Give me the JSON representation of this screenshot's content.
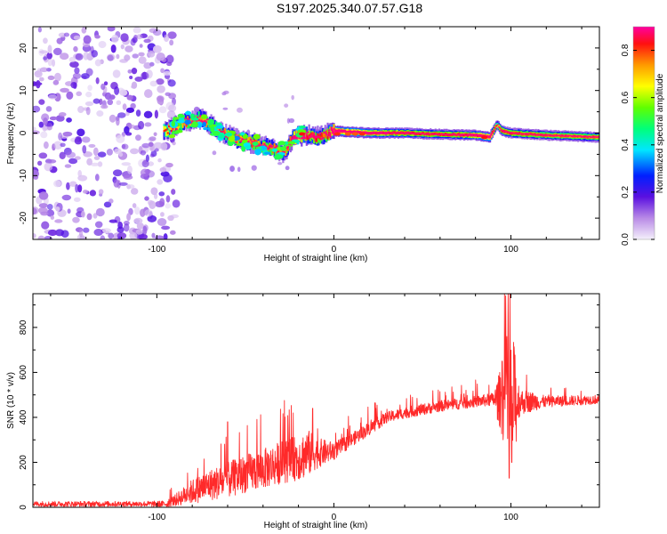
{
  "figure_title": "S197.2025.340.07.57.G18",
  "colors": {
    "signal": "#ff2a2a",
    "background": "#ffffff",
    "axis": "#000000"
  },
  "chart_data": [
    {
      "type": "heatmap",
      "title": "",
      "xlabel": "Height of straight line (km)",
      "ylabel": "Frequency (Hz)",
      "xlim": [
        -170,
        150
      ],
      "ylim": [
        -25,
        25
      ],
      "x_ticks": [
        -100,
        0,
        100
      ],
      "y_ticks": [
        -20,
        -10,
        0,
        10,
        20
      ],
      "colorbar": {
        "label": "Normalized spectral amplitude",
        "range": [
          0.0,
          0.9
        ],
        "ticks": [
          0.0,
          0.2,
          0.4,
          0.6,
          0.8
        ],
        "colormap": "rainbow (violet to red)"
      },
      "features": {
        "noise_region_x": [
          -170,
          -95
        ],
        "noise_amplitude": 0.1,
        "ridge": {
          "x": [
            -95,
            -85,
            -75,
            -65,
            -55,
            -45,
            -35,
            -28,
            -24,
            -20,
            -15,
            -10,
            -5,
            0,
            20,
            40,
            60,
            80,
            88,
            92,
            95,
            100,
            120,
            150
          ],
          "freq_hz": [
            0.5,
            2.5,
            3.5,
            0.5,
            -1.5,
            -2.5,
            -3.5,
            -4.5,
            -1.5,
            -0.5,
            -0.5,
            -1,
            -0.5,
            0.5,
            0,
            0,
            -0.3,
            -0.5,
            -1,
            2,
            0.5,
            0,
            -0.5,
            -1
          ],
          "amplitude": [
            0.35,
            0.45,
            0.45,
            0.42,
            0.45,
            0.5,
            0.5,
            0.45,
            0.6,
            0.85,
            0.6,
            0.6,
            0.5,
            0.85,
            0.7,
            0.6,
            0.55,
            0.65,
            0.85,
            0.35,
            0.6,
            0.55,
            0.5,
            0.5
          ]
        },
        "hotspots": [
          {
            "x": -18,
            "freq_hz": -0.2,
            "amplitude": 0.9
          },
          {
            "x": 2,
            "freq_hz": -0.2,
            "amplitude": 0.88
          },
          {
            "x": 8,
            "freq_hz": -0.2,
            "amplitude": 0.85
          },
          {
            "x": 12,
            "freq_hz": -0.2,
            "amplitude": 0.85
          },
          {
            "x": 16,
            "freq_hz": -0.2,
            "amplitude": 0.88
          },
          {
            "x": 85,
            "freq_hz": -1.0,
            "amplitude": 0.9
          }
        ]
      }
    },
    {
      "type": "line",
      "title": "",
      "xlabel": "Height of straight line (km)",
      "ylabel": "SNR (10 * v/v)",
      "xlim": [
        -170,
        150
      ],
      "ylim": [
        0,
        950
      ],
      "x_ticks": [
        -100,
        0,
        100
      ],
      "y_ticks": [
        0,
        200,
        400,
        600,
        800
      ],
      "series": [
        {
          "name": "SNR",
          "envelope_x": [
            -170,
            -110,
            -95,
            -90,
            -80,
            -70,
            -60,
            -50,
            -40,
            -30,
            -20,
            -15,
            -10,
            0,
            10,
            20,
            30,
            40,
            60,
            80,
            90,
            95,
            100,
            105,
            120,
            150
          ],
          "envelope_y": [
            15,
            15,
            15,
            30,
            70,
            100,
            120,
            150,
            170,
            200,
            220,
            240,
            240,
            250,
            300,
            350,
            400,
            420,
            450,
            470,
            480,
            480,
            460,
            470,
            470,
            480
          ],
          "noise_y": [
            12,
            12,
            14,
            25,
            55,
            70,
            80,
            85,
            90,
            95,
            100,
            110,
            70,
            40,
            30,
            30,
            25,
            25,
            25,
            25,
            30,
            160,
            380,
            60,
            25,
            20
          ],
          "peaks": [
            {
              "x": -60,
              "y": 380
            },
            {
              "x": -23,
              "y": 420
            },
            {
              "x": -12,
              "y": 440
            },
            {
              "x": 95,
              "y": 650
            },
            {
              "x": 97,
              "y": 940
            },
            {
              "x": 98.5,
              "y": 950
            },
            {
              "x": 99,
              "y": 130
            },
            {
              "x": 100.5,
              "y": 200
            },
            {
              "x": 102,
              "y": 680
            }
          ],
          "color": "#ff2a2a"
        }
      ]
    }
  ]
}
